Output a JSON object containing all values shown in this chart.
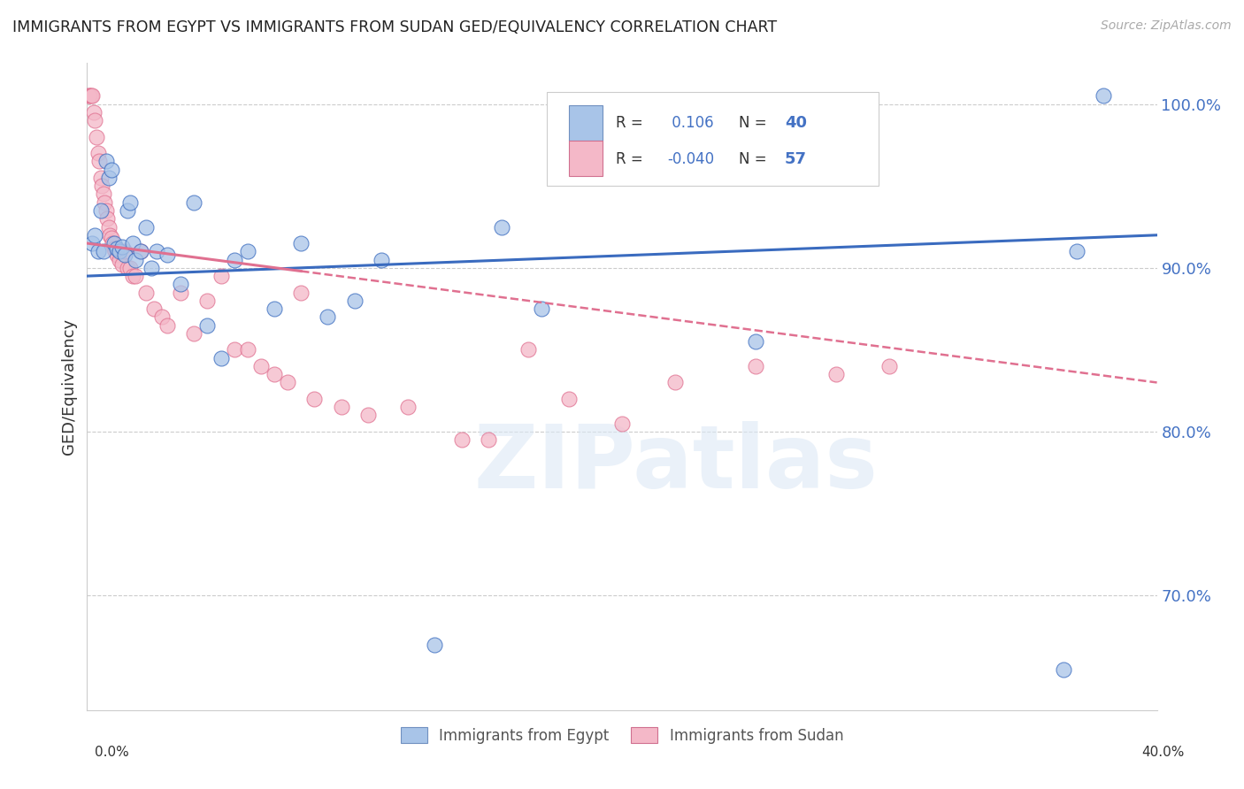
{
  "title": "IMMIGRANTS FROM EGYPT VS IMMIGRANTS FROM SUDAN GED/EQUIVALENCY CORRELATION CHART",
  "source": "Source: ZipAtlas.com",
  "ylabel": "GED/Equivalency",
  "yticks": [
    70.0,
    80.0,
    90.0,
    100.0
  ],
  "ytick_labels": [
    "70.0%",
    "80.0%",
    "90.0%",
    "100.0%"
  ],
  "xmin": 0.0,
  "xmax": 40.0,
  "ymin": 63.0,
  "ymax": 102.5,
  "color_egypt": "#a8c4e8",
  "color_sudan": "#f4b8c8",
  "color_trend_egypt": "#3a6bbf",
  "color_trend_sudan": "#e07090",
  "color_axis": "#4472c4",
  "watermark": "ZIPatlas",
  "egypt_x": [
    0.2,
    0.3,
    0.4,
    0.5,
    0.6,
    0.7,
    0.8,
    0.9,
    1.0,
    1.1,
    1.2,
    1.3,
    1.4,
    1.5,
    1.6,
    1.7,
    1.8,
    2.0,
    2.2,
    2.4,
    2.6,
    3.0,
    3.5,
    4.0,
    4.5,
    5.0,
    5.5,
    6.0,
    7.0,
    8.0,
    9.0,
    10.0,
    11.0,
    13.0,
    15.5,
    17.0,
    25.0,
    36.5,
    37.0,
    38.0
  ],
  "egypt_y": [
    91.5,
    92.0,
    91.0,
    93.5,
    91.0,
    96.5,
    95.5,
    96.0,
    91.5,
    91.2,
    91.0,
    91.3,
    90.8,
    93.5,
    94.0,
    91.5,
    90.5,
    91.0,
    92.5,
    90.0,
    91.0,
    90.8,
    89.0,
    94.0,
    86.5,
    84.5,
    90.5,
    91.0,
    87.5,
    91.5,
    87.0,
    88.0,
    90.5,
    67.0,
    92.5,
    87.5,
    85.5,
    65.5,
    91.0,
    100.5
  ],
  "sudan_x": [
    0.05,
    0.1,
    0.15,
    0.2,
    0.25,
    0.3,
    0.35,
    0.4,
    0.45,
    0.5,
    0.55,
    0.6,
    0.65,
    0.7,
    0.75,
    0.8,
    0.85,
    0.9,
    0.95,
    1.0,
    1.05,
    1.1,
    1.2,
    1.3,
    1.4,
    1.5,
    1.6,
    1.7,
    1.8,
    2.0,
    2.2,
    2.5,
    2.8,
    3.0,
    3.5,
    4.0,
    4.5,
    5.0,
    5.5,
    6.0,
    6.5,
    7.0,
    7.5,
    8.0,
    8.5,
    9.5,
    10.5,
    12.0,
    14.0,
    15.0,
    16.5,
    18.0,
    20.0,
    22.0,
    25.0,
    28.0,
    30.0
  ],
  "sudan_y": [
    100.5,
    100.5,
    100.5,
    100.5,
    99.5,
    99.0,
    98.0,
    97.0,
    96.5,
    95.5,
    95.0,
    94.5,
    94.0,
    93.5,
    93.0,
    92.5,
    92.0,
    91.8,
    91.5,
    91.2,
    91.0,
    90.8,
    90.5,
    90.2,
    91.0,
    90.0,
    90.0,
    89.5,
    89.5,
    91.0,
    88.5,
    87.5,
    87.0,
    86.5,
    88.5,
    86.0,
    88.0,
    89.5,
    85.0,
    85.0,
    84.0,
    83.5,
    83.0,
    88.5,
    82.0,
    81.5,
    81.0,
    81.5,
    79.5,
    79.5,
    85.0,
    82.0,
    80.5,
    83.0,
    84.0,
    83.5,
    84.0
  ]
}
